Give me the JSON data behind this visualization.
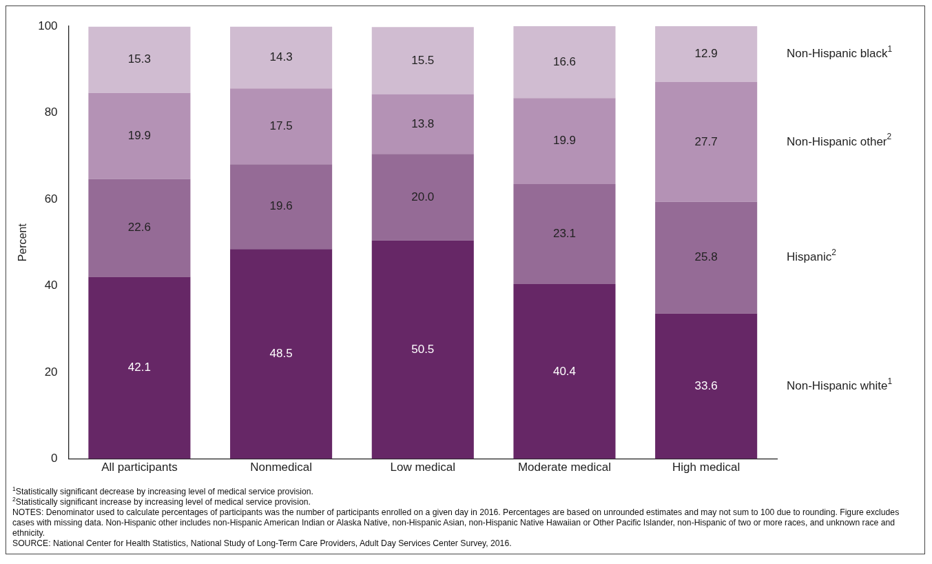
{
  "chart_data": {
    "type": "bar",
    "stacked": true,
    "ylabel": "Percent",
    "categories": [
      "All participants",
      "Nonmedical",
      "Low medical",
      "Moderate medical",
      "High medical"
    ],
    "series": [
      {
        "name": "Non-Hispanic white$^{1}$",
        "color": "#662766",
        "values": [
          42.1,
          48.5,
          50.5,
          40.4,
          33.6
        ]
      },
      {
        "name": "Hispanic$^{2}$",
        "color": "#956b96",
        "values": [
          22.6,
          19.6,
          20.0,
          23.1,
          25.8
        ]
      },
      {
        "name": "Non-Hispanic other$^{2}$",
        "color": "#b492b5",
        "values": [
          19.9,
          17.5,
          13.8,
          19.9,
          27.7
        ]
      },
      {
        "name": "Non-Hispanic black$^{1}$",
        "color": "#d0bcd1",
        "values": [
          15.3,
          14.3,
          15.5,
          16.6,
          12.9
        ]
      }
    ],
    "value_labels": [
      [
        "42.1",
        "48.5",
        "50.5",
        "40.4",
        "33.6"
      ],
      [
        "22.6",
        "19.6",
        "20.0",
        "23.1",
        "25.8"
      ],
      [
        "19.9",
        "17.5",
        "13.8",
        "19.9",
        "27.7"
      ],
      [
        "15.3",
        "14.3",
        "15.5",
        "16.6",
        "12.9"
      ]
    ],
    "ylim": [
      0,
      100
    ],
    "yticks": [
      0,
      20,
      40,
      60,
      80,
      100
    ],
    "grid": false,
    "legend": false,
    "annotations": [
      "$^{1}$Statistically significant decrease by increasing level of medical service provision.",
      "$^{2}$Statistically significant increase by increasing level of medical service provision.",
      "NOTES: Denominator used to calculate percentages of participants was the number of participants enrolled on a given day in 2016. Percentages are based on unrounded estimates and may not sum to 100 due to rounding. Figure excludes cases with missing data. Non-Hispanic other includes non-Hispanic American Indian or Alaska Native, non-Hispanic Asian, non-Hispanic Native Hawaiian or Other Pacific Islander, non-Hispanic of two or more races, and unknown race and ethnicity.",
      "SOURCE: National Center for Health Statistics, National Study of Long-Term Care Providers, Adult Day Services Center Survey, 2016."
    ]
  }
}
